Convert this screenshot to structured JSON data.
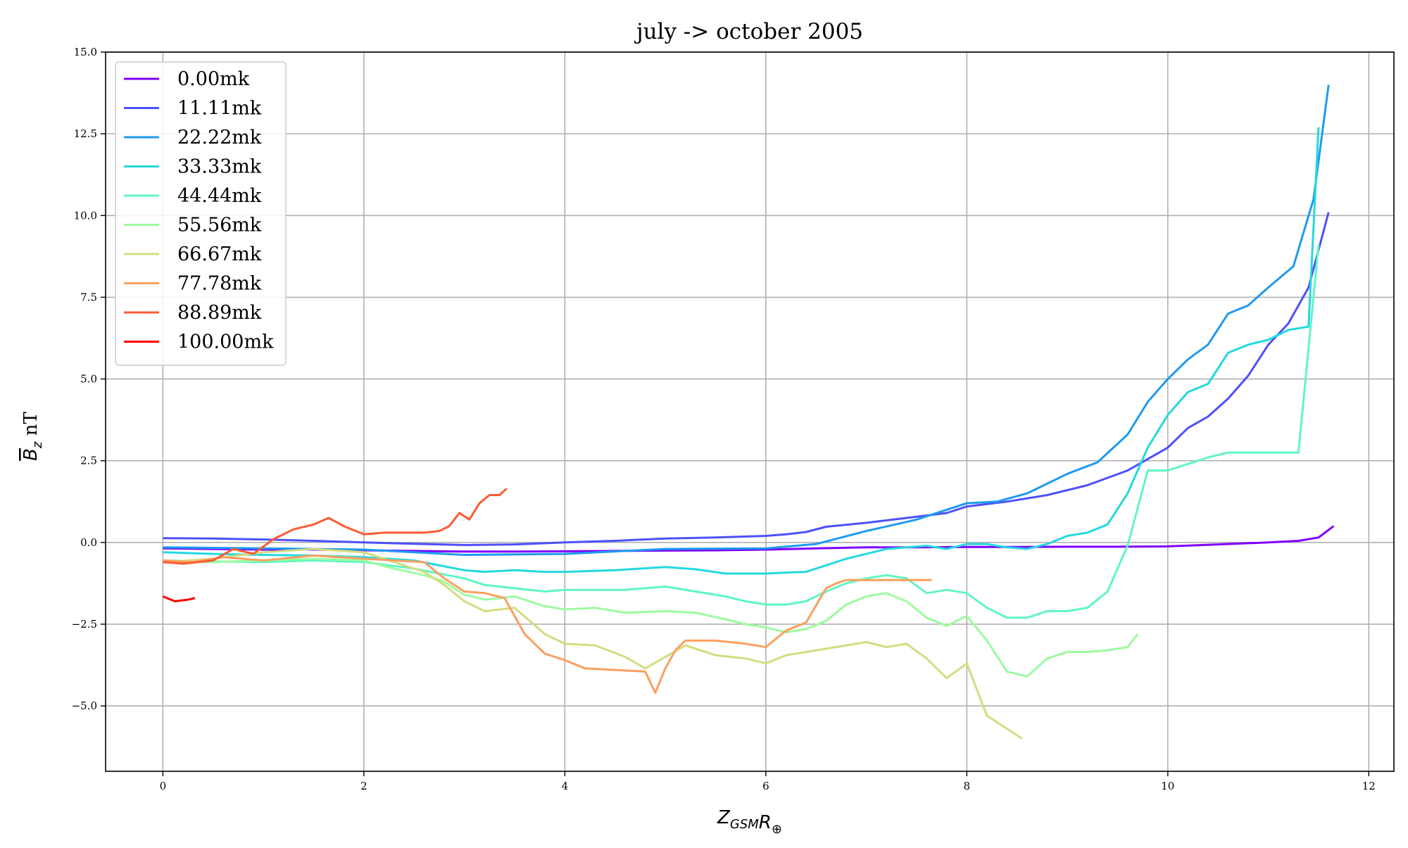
{
  "chart_data": {
    "type": "line",
    "title": "july -> october 2005",
    "xlabel": "Z_GSM R_⊕",
    "ylabel": "B_z nT",
    "xlim": [
      -0.57,
      12.25
    ],
    "ylim": [
      -7.0,
      15.0
    ],
    "xticks": [
      0,
      2,
      4,
      6,
      8,
      10,
      12
    ],
    "xtick_labels": [
      "0",
      "2",
      "4",
      "6",
      "8",
      "10",
      "12"
    ],
    "yticks": [
      -5.0,
      -2.5,
      0.0,
      2.5,
      5.0,
      7.5,
      10.0,
      12.5,
      15.0
    ],
    "ytick_labels": [
      "−5.0",
      "−2.5",
      "0.0",
      "2.5",
      "5.0",
      "7.5",
      "10.0",
      "12.5",
      "15.0"
    ],
    "grid": true,
    "legend_position": "top-left",
    "series": [
      {
        "name": "0.00mk",
        "color": "#8000ff",
        "x": [
          0,
          0.5,
          1,
          1.5,
          2,
          2.5,
          3,
          3.5,
          4,
          4.5,
          5,
          5.5,
          6,
          6.5,
          7,
          7.5,
          8,
          8.5,
          9,
          9.5,
          10,
          10.5,
          11,
          11.3,
          11.5,
          11.65
        ],
        "y": [
          -0.18,
          -0.2,
          -0.22,
          -0.22,
          -0.24,
          -0.26,
          -0.28,
          -0.28,
          -0.27,
          -0.26,
          -0.25,
          -0.24,
          -0.22,
          -0.18,
          -0.15,
          -0.15,
          -0.14,
          -0.14,
          -0.13,
          -0.13,
          -0.12,
          -0.06,
          0.0,
          0.05,
          0.15,
          0.5
        ]
      },
      {
        "name": "11.11mk",
        "color": "#4e50fc",
        "x": [
          0,
          0.5,
          1,
          1.5,
          2,
          2.5,
          3,
          3.5,
          4,
          4.5,
          5,
          5.5,
          6,
          6.2,
          6.4,
          6.6,
          7,
          7.4,
          7.8,
          8,
          8.4,
          8.8,
          9.2,
          9.6,
          10,
          10.2,
          10.4,
          10.6,
          10.8,
          11,
          11.2,
          11.4,
          11.6
        ],
        "y": [
          0.13,
          0.12,
          0.09,
          0.05,
          0.0,
          -0.04,
          -0.08,
          -0.06,
          0.0,
          0.05,
          0.12,
          0.15,
          0.2,
          0.25,
          0.32,
          0.48,
          0.6,
          0.75,
          0.9,
          1.1,
          1.25,
          1.45,
          1.75,
          2.2,
          2.9,
          3.5,
          3.85,
          4.4,
          5.1,
          6.05,
          6.7,
          7.8,
          10.1
        ]
      },
      {
        "name": "22.22mk",
        "color": "#1e9af0",
        "x": [
          0,
          1,
          2,
          3,
          4,
          5,
          6,
          6.5,
          7,
          7.5,
          8,
          8.3,
          8.6,
          9,
          9.3,
          9.6,
          9.8,
          10,
          10.2,
          10.4,
          10.6,
          10.8,
          11,
          11.25,
          11.45,
          11.6
        ],
        "y": [
          -0.15,
          -0.18,
          -0.22,
          -0.38,
          -0.35,
          -0.2,
          -0.18,
          -0.05,
          0.35,
          0.7,
          1.2,
          1.25,
          1.5,
          2.1,
          2.45,
          3.3,
          4.3,
          5.0,
          5.6,
          6.05,
          7.0,
          7.25,
          7.8,
          8.45,
          10.5,
          14.0
        ]
      },
      {
        "name": "33.33mk",
        "color": "#25d8e0",
        "x": [
          0,
          0.5,
          1,
          1.5,
          2,
          2.5,
          3,
          3.2,
          3.5,
          3.8,
          4,
          4.5,
          5,
          5.3,
          5.6,
          5.8,
          6,
          6.2,
          6.4,
          6.6,
          6.8,
          7,
          7.2,
          7.4,
          7.6,
          7.8,
          8,
          8.2,
          8.4,
          8.6,
          8.8,
          9,
          9.2,
          9.4,
          9.6,
          9.8,
          10,
          10.2,
          10.4,
          10.6,
          10.8,
          11,
          11.2,
          11.4,
          11.5
        ],
        "y": [
          -0.3,
          -0.35,
          -0.38,
          -0.4,
          -0.45,
          -0.55,
          -0.85,
          -0.9,
          -0.85,
          -0.9,
          -0.9,
          -0.85,
          -0.75,
          -0.82,
          -0.95,
          -0.95,
          -0.95,
          -0.92,
          -0.9,
          -0.7,
          -0.5,
          -0.35,
          -0.2,
          -0.15,
          -0.1,
          -0.2,
          -0.05,
          -0.05,
          -0.15,
          -0.2,
          -0.05,
          0.2,
          0.3,
          0.55,
          1.5,
          2.9,
          3.9,
          4.6,
          4.85,
          5.8,
          6.05,
          6.2,
          6.5,
          6.6,
          12.7
        ]
      },
      {
        "name": "44.44mk",
        "color": "#60f6c4",
        "x": [
          0,
          0.5,
          1,
          1.5,
          2,
          2.5,
          3,
          3.2,
          3.5,
          3.8,
          4,
          4.3,
          4.6,
          5,
          5.3,
          5.6,
          5.8,
          6,
          6.2,
          6.4,
          6.6,
          6.8,
          7,
          7.2,
          7.4,
          7.6,
          7.8,
          8,
          8.2,
          8.4,
          8.6,
          8.8,
          9,
          9.2,
          9.4,
          9.6,
          9.8,
          10,
          10.2,
          10.4,
          10.6,
          10.8,
          11,
          11.2,
          11.3,
          11.5
        ],
        "y": [
          -0.55,
          -0.58,
          -0.6,
          -0.55,
          -0.6,
          -0.8,
          -1.1,
          -1.3,
          -1.4,
          -1.5,
          -1.45,
          -1.45,
          -1.45,
          -1.35,
          -1.5,
          -1.65,
          -1.8,
          -1.9,
          -1.9,
          -1.8,
          -1.5,
          -1.25,
          -1.1,
          -1.0,
          -1.1,
          -1.55,
          -1.45,
          -1.55,
          -2.0,
          -2.3,
          -2.3,
          -2.1,
          -2.1,
          -2.0,
          -1.5,
          -0.1,
          2.2,
          2.2,
          2.4,
          2.6,
          2.75,
          2.75,
          2.75,
          2.75,
          2.75,
          9.1
        ]
      },
      {
        "name": "55.56mk",
        "color": "#9dfb9f",
        "x": [
          0,
          0.5,
          1,
          1.5,
          2,
          2.3,
          2.6,
          2.8,
          3,
          3.2,
          3.5,
          3.8,
          4,
          4.3,
          4.6,
          5,
          5.3,
          5.6,
          5.8,
          6,
          6.2,
          6.4,
          6.6,
          6.8,
          7,
          7.2,
          7.4,
          7.6,
          7.8,
          8,
          8.2,
          8.4,
          8.6,
          8.8,
          9,
          9.2,
          9.4,
          9.6,
          9.7
        ],
        "y": [
          -0.6,
          -0.6,
          -0.55,
          -0.5,
          -0.55,
          -0.8,
          -1.0,
          -1.2,
          -1.6,
          -1.75,
          -1.65,
          -1.95,
          -2.05,
          -2.0,
          -2.15,
          -2.1,
          -2.15,
          -2.35,
          -2.5,
          -2.6,
          -2.75,
          -2.65,
          -2.4,
          -1.9,
          -1.65,
          -1.55,
          -1.8,
          -2.3,
          -2.55,
          -2.25,
          -3.0,
          -3.95,
          -4.1,
          -3.55,
          -3.35,
          -3.35,
          -3.3,
          -3.2,
          -2.8
        ]
      },
      {
        "name": "66.67mk",
        "color": "#d4dc7f",
        "x": [
          0,
          0.5,
          1,
          1.5,
          2,
          2.3,
          2.6,
          2.8,
          3,
          3.2,
          3.5,
          3.8,
          4,
          4.3,
          4.6,
          4.8,
          5,
          5.2,
          5.5,
          5.8,
          6,
          6.2,
          6.5,
          6.8,
          7,
          7.2,
          7.4,
          7.6,
          7.8,
          8,
          8.2,
          8.4,
          8.55
        ],
        "y": [
          -0.6,
          -0.5,
          -0.3,
          -0.2,
          -0.3,
          -0.6,
          -0.9,
          -1.3,
          -1.8,
          -2.1,
          -2.0,
          -2.8,
          -3.1,
          -3.15,
          -3.5,
          -3.85,
          -3.5,
          -3.15,
          -3.45,
          -3.55,
          -3.7,
          -3.45,
          -3.3,
          -3.15,
          -3.05,
          -3.2,
          -3.1,
          -3.55,
          -4.15,
          -3.7,
          -5.3,
          -5.7,
          -6.0
        ]
      },
      {
        "name": "77.78mk",
        "color": "#fba05f",
        "x": [
          0,
          0.3,
          0.6,
          1,
          1.5,
          2,
          2.3,
          2.6,
          2.8,
          3,
          3.2,
          3.4,
          3.6,
          3.8,
          4,
          4.2,
          4.5,
          4.8,
          4.9,
          5,
          5.1,
          5.2,
          5.5,
          5.8,
          6,
          6.2,
          6.4,
          6.6,
          6.7,
          6.8,
          7,
          7.3,
          7.65
        ],
        "y": [
          -0.55,
          -0.6,
          -0.45,
          -0.55,
          -0.4,
          -0.5,
          -0.55,
          -0.6,
          -1.1,
          -1.5,
          -1.55,
          -1.7,
          -2.8,
          -3.4,
          -3.6,
          -3.85,
          -3.9,
          -3.95,
          -4.6,
          -3.85,
          -3.3,
          -3.0,
          -3.0,
          -3.1,
          -3.2,
          -2.7,
          -2.45,
          -1.4,
          -1.25,
          -1.15,
          -1.15,
          -1.15,
          -1.15
        ]
      },
      {
        "name": "88.89mk",
        "color": "#ff5a33",
        "x": [
          0,
          0.2,
          0.5,
          0.7,
          0.9,
          1.1,
          1.3,
          1.5,
          1.65,
          1.8,
          2.0,
          2.2,
          2.4,
          2.6,
          2.75,
          2.85,
          2.95,
          3.05,
          3.15,
          3.25,
          3.35,
          3.42
        ],
        "y": [
          -0.6,
          -0.65,
          -0.55,
          -0.2,
          -0.35,
          0.1,
          0.4,
          0.55,
          0.75,
          0.5,
          0.25,
          0.3,
          0.3,
          0.3,
          0.35,
          0.5,
          0.9,
          0.7,
          1.2,
          1.45,
          1.45,
          1.65
        ]
      },
      {
        "name": "100.00mk",
        "color": "#ff0000",
        "x": [
          0,
          0.12,
          0.25,
          0.32
        ],
        "y": [
          -1.65,
          -1.8,
          -1.75,
          -1.7
        ]
      }
    ]
  }
}
